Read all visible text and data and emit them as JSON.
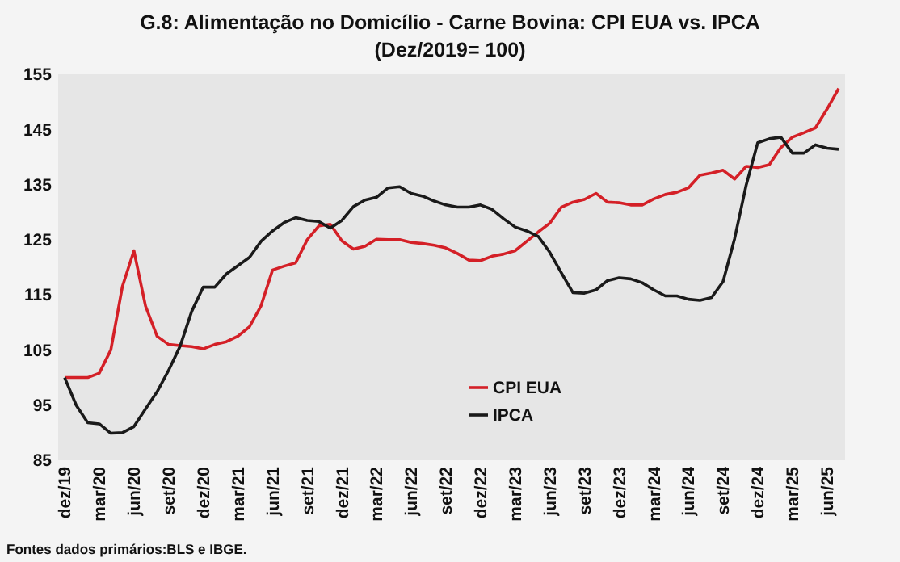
{
  "chart_data": {
    "type": "line",
    "title": "G.8: Alimentação no Domicílio - Carne Bovina: CPI EUA vs. IPCA",
    "subtitle": "(Dez/2019= 100)",
    "categories": [
      "dez/19",
      null,
      null,
      "mar/20",
      null,
      null,
      "jun/20",
      null,
      null,
      "set/20",
      null,
      null,
      "dez/20",
      null,
      null,
      "mar/21",
      null,
      null,
      "jun/21",
      null,
      null,
      "set/21",
      null,
      null,
      "dez/21",
      null,
      null,
      "mar/22",
      null,
      null,
      "jun/22",
      null,
      null,
      "set/22",
      null,
      null,
      "dez/22",
      null,
      null,
      "mar/23",
      null,
      null,
      "jun/23",
      null,
      null,
      "set/23",
      null,
      null,
      "dez/23",
      null,
      null,
      "mar/24",
      null,
      null,
      "jun/24",
      null,
      null,
      "set/24",
      null,
      null,
      "dez/24",
      null,
      null,
      "mar/25",
      null,
      null,
      "jun/25",
      null
    ],
    "series": [
      {
        "name": "CPI EUA",
        "color": "#d42027",
        "values": [
          100,
          100,
          100,
          100.8,
          105,
          116.5,
          123,
          113,
          107.5,
          106,
          105.8,
          105.6,
          105.2,
          106,
          106.5,
          107.5,
          109.2,
          113,
          119.5,
          120.2,
          120.8,
          125,
          127.5,
          127.8,
          124.8,
          123.3,
          123.8,
          125.1,
          125,
          125,
          124.5,
          124.3,
          124,
          123.5,
          122.5,
          121.3,
          121.2,
          122,
          122.4,
          123,
          124.7,
          126.4,
          128,
          130.9,
          131.8,
          132.3,
          133.4,
          131.8,
          131.7,
          131.3,
          131.3,
          132.4,
          133.2,
          133.6,
          134.4,
          136.7,
          137.1,
          137.6,
          136,
          138.3,
          138.1,
          138.6,
          141.7,
          143.6,
          144.4,
          145.3,
          148.7,
          152.4
        ]
      },
      {
        "name": "IPCA",
        "color": "#1a1a1a",
        "values": [
          100,
          95,
          91.8,
          91.6,
          89.9,
          90,
          91.1,
          94.3,
          97.4,
          101.3,
          105.7,
          112,
          116.4,
          116.4,
          118.8,
          120.3,
          121.8,
          124.7,
          126.6,
          128.1,
          129,
          128.5,
          128.3,
          127.1,
          128.5,
          131,
          132.2,
          132.7,
          134.4,
          134.6,
          133.4,
          132.9,
          132,
          131.3,
          130.9,
          130.9,
          131.3,
          130.5,
          128.8,
          127.3,
          126.6,
          125.6,
          122.7,
          119,
          115.4,
          115.3,
          115.9,
          117.6,
          118.1,
          117.9,
          117.2,
          115.9,
          114.8,
          114.8,
          114.2,
          114,
          114.5,
          117.4,
          125.2,
          134.9,
          142.6,
          143.3,
          143.6,
          140.7,
          140.7,
          142.2,
          141.6,
          141.4
        ]
      }
    ],
    "ylim": [
      85,
      155
    ],
    "yticks": [
      85,
      95,
      105,
      115,
      125,
      135,
      145,
      155
    ],
    "grid": false,
    "legend": "bottom",
    "marker": "none",
    "line_style": "solid",
    "annotations": [
      "Fontes dados primários:BLS e IBGE."
    ]
  }
}
